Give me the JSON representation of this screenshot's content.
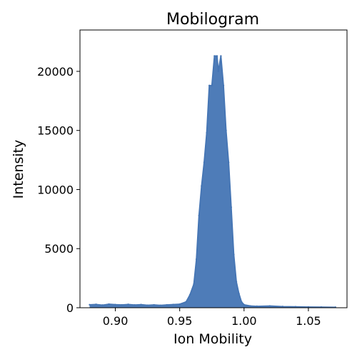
{
  "chart_data": {
    "type": "line",
    "title": "Mobilogram",
    "xlabel": "Ion Mobility",
    "ylabel": "Intensity",
    "xlim": [
      0.8725,
      1.08
    ],
    "ylim": [
      0,
      23500
    ],
    "xticks": [
      0.9,
      0.95,
      1.0,
      1.05
    ],
    "xtick_labels": [
      "0.90",
      "0.95",
      "1.00",
      "1.05"
    ],
    "yticks": [
      0,
      5000,
      10000,
      15000,
      20000
    ],
    "ytick_labels": [
      "0",
      "5000",
      "10000",
      "15000",
      "20000"
    ],
    "grid": false,
    "legend": "none",
    "color": "#4575b4",
    "series": [
      {
        "x": [
          0.88,
          0.885,
          0.89,
          0.895,
          0.9,
          0.905,
          0.91,
          0.915,
          0.92,
          0.925,
          0.93,
          0.935,
          0.94,
          0.945,
          0.95,
          0.955,
          0.958,
          0.961,
          0.963,
          0.965,
          0.967,
          0.969,
          0.971,
          0.973,
          0.975,
          0.977,
          0.979,
          0.98,
          0.982,
          0.984,
          0.986,
          0.988,
          0.99,
          0.992,
          0.994,
          0.996,
          0.998,
          1.0,
          1.005,
          1.01,
          1.02,
          1.03,
          1.04,
          1.05,
          1.06,
          1.071
        ],
        "y": [
          250,
          280,
          220,
          300,
          260,
          240,
          280,
          230,
          260,
          210,
          240,
          200,
          240,
          270,
          300,
          500,
          1100,
          2000,
          4100,
          7800,
          10300,
          12300,
          14800,
          18800,
          18800,
          21300,
          21300,
          20000,
          21300,
          18800,
          15000,
          12300,
          8500,
          4500,
          2200,
          1200,
          500,
          250,
          150,
          120,
          150,
          100,
          80,
          60,
          50,
          40
        ]
      }
    ]
  }
}
